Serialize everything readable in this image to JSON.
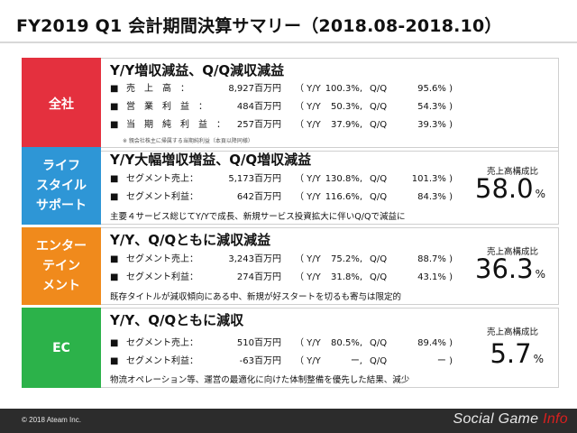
{
  "title": "FY2019 Q1 会計期間決算サマリー（2018.08-2018.10）",
  "colors": {
    "zenzha": "#e4303e",
    "lifestyle": "#2e96d6",
    "entertainment": "#f08a1c",
    "ec": "#2cb24a"
  },
  "sections": {
    "all": {
      "label": "全社",
      "headline": "Y/Y増収減益、Q/Q減収減益",
      "rows": [
        {
          "label": "売　上　高　：",
          "value": "8,927百万円",
          "yy_label": "（ Y/Y",
          "yy": "100.3%,",
          "qq_label": "Q/Q",
          "qq": "95.6% )"
        },
        {
          "label": "営　業　利　益　：",
          "value": "484百万円",
          "yy_label": "（ Y/Y",
          "yy": "50.3%,",
          "qq_label": "Q/Q",
          "qq": "54.3% )"
        },
        {
          "label": "当　期　純　利　益　：",
          "value": "257百万円",
          "yy_label": "（ Y/Y",
          "yy": "37.9%,",
          "qq_label": "Q/Q",
          "qq": "39.3% )"
        }
      ],
      "footnote": "※ 親会社株主に帰属する当期純利益（本頁以降同様）"
    },
    "lifestyle": {
      "label": "ライフ\nスタイル\nサポート",
      "headline": "Y/Y大幅増収増益、Q/Q増収減益",
      "rows": [
        {
          "label": "セグメント売上：",
          "value": "5,173百万円",
          "yy_label": "（ Y/Y",
          "yy": "130.8%,",
          "qq_label": "Q/Q",
          "qq": "101.3% )"
        },
        {
          "label": "セグメント利益：",
          "value": "642百万円",
          "yy_label": "（ Y/Y",
          "yy": "116.6%,",
          "qq_label": "Q/Q",
          "qq": "84.3% )"
        }
      ],
      "note": "主要４サービス総じてY/Yで成長、新規サービス投資拡大に伴いQ/Qで減益に",
      "ratio_label": "売上高構成比",
      "ratio_value": "58.0",
      "ratio_unit": "%"
    },
    "entertainment": {
      "label": "エンター\nテイン\nメント",
      "headline": "Y/Y、Q/Qともに減収減益",
      "rows": [
        {
          "label": "セグメント売上：",
          "value": "3,243百万円",
          "yy_label": "（ Y/Y",
          "yy": "75.2%,",
          "qq_label": "Q/Q",
          "qq": "88.7% )"
        },
        {
          "label": "セグメント利益：",
          "value": "274百万円",
          "yy_label": "（ Y/Y",
          "yy": "31.8%,",
          "qq_label": "Q/Q",
          "qq": "43.1% )"
        }
      ],
      "note": "既存タイトルが減収傾向にある中、新規が好スタートを切るも寄与は限定的",
      "ratio_label": "売上高構成比",
      "ratio_value": "36.3",
      "ratio_unit": "%"
    },
    "ec": {
      "label": "EC",
      "headline": "Y/Y、Q/Qともに減収",
      "rows": [
        {
          "label": "セグメント売上：",
          "value": "510百万円",
          "yy_label": "（ Y/Y",
          "yy": "80.5%,",
          "qq_label": "Q/Q",
          "qq": "89.4% )"
        },
        {
          "label": "セグメント利益：",
          "value": "-63百万円",
          "yy_label": "（ Y/Y",
          "yy": "ー,",
          "qq_label": "Q/Q",
          "qq": "ー )"
        }
      ],
      "note": "物流オペレーション等、運営の最適化に向けた体制整備を優先した結果、減少",
      "ratio_label": "売上高構成比",
      "ratio_value": "5.7",
      "ratio_unit": "%"
    }
  },
  "footer": {
    "copyright": "© 2018 Ateam Inc.",
    "watermark_main": "Social Game ",
    "watermark_accent": "Info"
  }
}
